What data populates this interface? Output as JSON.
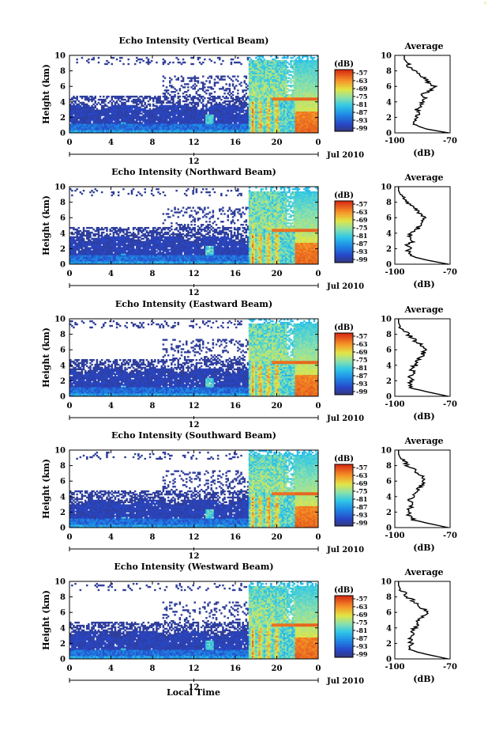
{
  "figure": {
    "bottom_xlabel": "Local Time",
    "colorbar_unit": "(dB)",
    "colorbar_ticks": [
      "-57",
      "-63",
      "-69",
      "-75",
      "-81",
      "-87",
      "-93",
      "-99"
    ],
    "date_label": "Jul 2010",
    "avg_title": "Average",
    "avg_xlabel": "(dB)",
    "avg_xticks": [
      "-100",
      "-70"
    ]
  },
  "chart_data": [
    {
      "type": "heatmap",
      "title": "Echo Intensity (Vertical Beam)",
      "xlabel": "",
      "ylabel": "Height (km)",
      "xlim": [
        0,
        24
      ],
      "ylim": [
        0,
        10
      ],
      "xticks": [
        "0",
        "4",
        "8",
        "12",
        "16",
        "20",
        "0"
      ],
      "yticks": [
        "0",
        "2",
        "4",
        "6",
        "8",
        "10"
      ],
      "day_marker": "12",
      "colorbar_range_db": [
        -99,
        -57
      ],
      "average_profile": {
        "xlim": [
          -105,
          -70
        ],
        "height_km": [
          0,
          0.5,
          1,
          1.5,
          2,
          2.5,
          3,
          3.5,
          4,
          4.5,
          5,
          5.5,
          6,
          6.5,
          7,
          7.5,
          8,
          8.5,
          9,
          9.5,
          10
        ],
        "db": [
          -71,
          -85,
          -92,
          -93,
          -91,
          -90,
          -91,
          -89,
          -87,
          -86,
          -87,
          -82,
          -80,
          -84,
          -86,
          -90,
          -93,
          -96,
          -97,
          -99,
          -99
        ]
      }
    },
    {
      "type": "heatmap",
      "title": "Echo Intensity (Northward Beam)",
      "xlabel": "",
      "ylabel": "Height (km)",
      "xlim": [
        0,
        24
      ],
      "ylim": [
        0,
        10
      ],
      "xticks": [
        "0",
        "4",
        "8",
        "12",
        "16",
        "20",
        "0"
      ],
      "yticks": [
        "0",
        "2",
        "4",
        "6",
        "8",
        "10"
      ],
      "day_marker": "12",
      "colorbar_range_db": [
        -99,
        -57
      ],
      "average_profile": {
        "xlim": [
          -100,
          -70
        ],
        "height_km": [
          0,
          0.5,
          1,
          1.5,
          2,
          2.5,
          3,
          3.5,
          4,
          4.5,
          5,
          5.5,
          6,
          6.5,
          7,
          7.5,
          8,
          8.5,
          9,
          9.5,
          10
        ],
        "db": [
          -71,
          -82,
          -91,
          -93,
          -92,
          -93,
          -90,
          -92,
          -91,
          -88,
          -87,
          -86,
          -84,
          -86,
          -88,
          -90,
          -93,
          -95,
          -97,
          -98,
          -98
        ]
      }
    },
    {
      "type": "heatmap",
      "title": "Echo Intensity (Eastward Beam)",
      "xlabel": "",
      "ylabel": "Height (km)",
      "xlim": [
        0,
        24
      ],
      "ylim": [
        0,
        10
      ],
      "xticks": [
        "0",
        "4",
        "8",
        "12",
        "16",
        "20",
        "0"
      ],
      "yticks": [
        "0",
        "2",
        "4",
        "6",
        "8",
        "10"
      ],
      "day_marker": "12",
      "colorbar_range_db": [
        -99,
        -57
      ],
      "average_profile": {
        "xlim": [
          -100,
          -70
        ],
        "height_km": [
          0,
          0.5,
          1,
          1.5,
          2,
          2.5,
          3,
          3.5,
          4,
          4.5,
          5,
          5.5,
          6,
          6.5,
          7,
          7.5,
          8,
          8.5,
          9,
          9.5,
          10
        ],
        "db": [
          -71,
          -81,
          -90,
          -92,
          -91,
          -92,
          -90,
          -91,
          -89,
          -88,
          -86,
          -85,
          -83,
          -85,
          -88,
          -90,
          -93,
          -95,
          -97,
          -98,
          -98
        ]
      }
    },
    {
      "type": "heatmap",
      "title": "Echo Intensity (Southward Beam)",
      "xlabel": "",
      "ylabel": "Height (km)",
      "xlim": [
        0,
        24
      ],
      "ylim": [
        0,
        10
      ],
      "xticks": [
        "0",
        "4",
        "8",
        "12",
        "16",
        "20",
        "0"
      ],
      "yticks": [
        "0",
        "2",
        "4",
        "6",
        "8",
        "10"
      ],
      "day_marker": "12",
      "colorbar_range_db": [
        -99,
        -57
      ],
      "average_profile": {
        "xlim": [
          -100,
          -70
        ],
        "height_km": [
          0,
          0.5,
          1,
          1.5,
          2,
          2.5,
          3,
          3.5,
          4,
          4.5,
          5,
          5.5,
          6,
          6.5,
          7,
          7.5,
          8,
          8.5,
          9,
          9.5,
          10
        ],
        "db": [
          -71,
          -81,
          -90,
          -92,
          -92,
          -92,
          -90,
          -92,
          -90,
          -88,
          -87,
          -85,
          -84,
          -85,
          -88,
          -90,
          -93,
          -95,
          -97,
          -98,
          -98
        ]
      }
    },
    {
      "type": "heatmap",
      "title": "Echo Intensity (Westward Beam)",
      "xlabel": "Local Time",
      "ylabel": "Height (km)",
      "xlim": [
        0,
        24
      ],
      "ylim": [
        0,
        10
      ],
      "xticks": [
        "0",
        "4",
        "8",
        "12",
        "16",
        "20",
        "0"
      ],
      "yticks": [
        "0",
        "2",
        "4",
        "6",
        "8",
        "10"
      ],
      "day_marker": "12",
      "colorbar_range_db": [
        -99,
        -57
      ],
      "average_profile": {
        "xlim": [
          -100,
          -70
        ],
        "height_km": [
          0,
          0.5,
          1,
          1.5,
          2,
          2.5,
          3,
          3.5,
          4,
          4.5,
          5,
          5.5,
          6,
          6.5,
          7,
          7.5,
          8,
          8.5,
          9,
          9.5,
          10
        ],
        "db": [
          -71,
          -81,
          -90,
          -92,
          -91,
          -92,
          -90,
          -91,
          -89,
          -88,
          -87,
          -85,
          -82,
          -85,
          -88,
          -90,
          -93,
          -95,
          -97,
          -98,
          -98
        ]
      }
    }
  ]
}
